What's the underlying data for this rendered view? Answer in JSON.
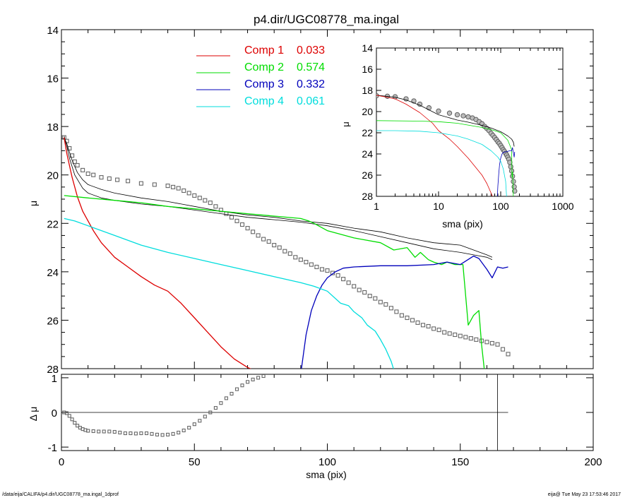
{
  "footer": {
    "path": "/data/eija/CALIFA/p4.dir/UGC08778_ma.ingal_1dprof",
    "stamp": "eija@  Tue May 23 17:53:46 2017"
  },
  "colors": {
    "axes": "#000000",
    "total": "#000000",
    "observed": "#666666",
    "comp1": "#dd0000",
    "comp2": "#00dd00",
    "comp3": "#0000bb",
    "comp4": "#00dddd"
  },
  "chart_data": [
    {
      "type": "line",
      "title": "p4.dir/UGC08778_ma.ingal",
      "xlabel": "",
      "ylabel": "μ",
      "xlim": [
        0,
        200
      ],
      "ylim": [
        28,
        14
      ],
      "y_inverted": true,
      "yticks": [
        "14",
        "16",
        "18",
        "20",
        "22",
        "24",
        "26",
        "28"
      ],
      "legend": {
        "placement": "top-center",
        "entries": [
          {
            "label": "Comp 1",
            "value": "0.033",
            "color": "#dd0000"
          },
          {
            "label": "Comp 2",
            "value": "0.574",
            "color": "#00dd00"
          },
          {
            "label": "Comp 3",
            "value": "0.332",
            "color": "#0000bb"
          },
          {
            "label": "Comp 4",
            "value": "0.061",
            "color": "#00dddd"
          }
        ]
      },
      "observed": {
        "x": [
          1,
          2,
          3,
          4,
          5,
          6,
          8,
          10,
          12,
          15,
          18,
          21,
          25,
          30,
          35,
          40,
          42,
          44,
          46,
          48,
          50,
          52,
          54,
          56,
          58,
          60,
          62,
          64,
          66,
          68,
          70,
          72,
          74,
          76,
          78,
          80,
          82,
          84,
          86,
          88,
          90,
          92,
          94,
          96,
          98,
          100,
          102,
          104,
          106,
          108,
          110,
          112,
          114,
          116,
          118,
          120,
          122,
          124,
          126,
          128,
          130,
          132,
          134,
          136,
          138,
          140,
          142,
          144,
          146,
          148,
          150,
          152,
          154,
          156,
          158,
          160,
          162,
          164,
          166,
          168
        ],
        "y": [
          18.45,
          18.6,
          18.9,
          19.2,
          19.45,
          19.6,
          19.8,
          19.95,
          20.0,
          20.1,
          20.15,
          20.2,
          20.25,
          20.35,
          20.4,
          20.45,
          20.5,
          20.55,
          20.65,
          20.75,
          20.85,
          20.95,
          21.05,
          21.15,
          21.3,
          21.45,
          21.6,
          21.75,
          21.9,
          22.05,
          22.2,
          22.35,
          22.5,
          22.65,
          22.75,
          22.9,
          23.0,
          23.15,
          23.25,
          23.4,
          23.5,
          23.6,
          23.7,
          23.8,
          23.9,
          23.95,
          24.05,
          24.15,
          24.3,
          24.45,
          24.6,
          24.75,
          24.85,
          25.0,
          25.1,
          25.25,
          25.35,
          25.5,
          25.65,
          25.8,
          25.9,
          26.0,
          26.1,
          26.2,
          26.25,
          26.35,
          26.4,
          26.5,
          26.55,
          26.6,
          26.65,
          26.7,
          26.75,
          26.8,
          26.85,
          26.9,
          26.95,
          27.0,
          27.2,
          27.4
        ]
      },
      "series": [
        {
          "key": "total",
          "color": "#000000",
          "width": 0.8,
          "x": [
            1,
            2,
            3,
            4,
            6,
            8,
            10,
            15,
            20,
            30,
            40,
            50,
            60,
            70,
            80,
            90,
            100,
            110,
            120,
            130,
            140,
            150,
            155,
            160,
            162
          ],
          "y": [
            18.45,
            18.7,
            19.05,
            19.4,
            19.9,
            20.2,
            20.4,
            20.6,
            20.75,
            20.95,
            21.1,
            21.3,
            21.5,
            21.65,
            21.75,
            21.9,
            22.0,
            22.2,
            22.35,
            22.6,
            22.8,
            22.9,
            23.1,
            23.3,
            23.4
          ]
        },
        {
          "key": "total_alt",
          "color": "#000000",
          "width": 0.8,
          "x": [
            1,
            2,
            3,
            5,
            8,
            10,
            15,
            20,
            30,
            40,
            50,
            60,
            70,
            80,
            90,
            100,
            110,
            120,
            130,
            140,
            150,
            155,
            160,
            162
          ],
          "y": [
            18.4,
            18.8,
            19.3,
            20.0,
            20.55,
            20.75,
            20.95,
            21.05,
            21.2,
            21.3,
            21.45,
            21.6,
            21.75,
            21.85,
            21.95,
            22.1,
            22.3,
            22.55,
            22.8,
            23.05,
            23.2,
            23.3,
            23.4,
            23.5
          ]
        },
        {
          "key": "comp1",
          "color": "#dd0000",
          "width": 1.3,
          "x": [
            1,
            2,
            4,
            6,
            8,
            10,
            12,
            15,
            20,
            25,
            30,
            35,
            40,
            45,
            50,
            55,
            60,
            65,
            70,
            73
          ],
          "y": [
            18.45,
            19.1,
            20.1,
            20.9,
            21.5,
            21.9,
            22.3,
            22.8,
            23.4,
            23.8,
            24.2,
            24.55,
            24.8,
            25.3,
            25.9,
            26.5,
            27.1,
            27.6,
            27.95,
            28.1
          ]
        },
        {
          "key": "comp2",
          "color": "#00dd00",
          "width": 1.3,
          "x": [
            1,
            10,
            20,
            30,
            40,
            50,
            60,
            70,
            80,
            90,
            93,
            95,
            100,
            110,
            120,
            125,
            130,
            133,
            135,
            138,
            140,
            143,
            145,
            148,
            151,
            153,
            155,
            157,
            158,
            160
          ],
          "y": [
            20.85,
            20.95,
            21.05,
            21.15,
            21.3,
            21.4,
            21.5,
            21.6,
            21.7,
            21.8,
            21.9,
            22.0,
            22.3,
            22.6,
            22.8,
            23.1,
            23.0,
            23.4,
            23.2,
            23.5,
            23.6,
            23.7,
            23.6,
            23.7,
            23.7,
            26.2,
            25.8,
            25.6,
            27.0,
            29.0
          ]
        },
        {
          "key": "comp3",
          "color": "#0000bb",
          "width": 1.3,
          "x": [
            90,
            92,
            94,
            96,
            98,
            100,
            103,
            106,
            110,
            120,
            130,
            140,
            145,
            150,
            155,
            157,
            159,
            160,
            162,
            164,
            166,
            168
          ],
          "y": [
            28.2,
            26.6,
            25.6,
            25.0,
            24.55,
            24.25,
            24.0,
            23.85,
            23.8,
            23.75,
            23.75,
            23.7,
            23.6,
            23.7,
            23.35,
            23.45,
            23.75,
            23.9,
            24.25,
            23.8,
            23.85,
            23.8
          ]
        },
        {
          "key": "comp4",
          "color": "#00dddd",
          "width": 1.3,
          "x": [
            1,
            5,
            10,
            20,
            30,
            40,
            50,
            60,
            70,
            80,
            90,
            95,
            100,
            105,
            108,
            110,
            113,
            115,
            118,
            120,
            122,
            124,
            126
          ],
          "y": [
            21.8,
            21.9,
            22.1,
            22.5,
            22.9,
            23.2,
            23.45,
            23.7,
            23.95,
            24.2,
            24.45,
            24.6,
            24.8,
            25.3,
            25.4,
            25.65,
            25.9,
            26.2,
            26.45,
            26.8,
            27.2,
            27.7,
            28.4
          ]
        }
      ]
    },
    {
      "type": "scatter",
      "title": "",
      "xlabel": "sma (pix)",
      "ylabel": "Δ μ",
      "xlim": [
        0,
        200
      ],
      "ylim": [
        -1.1,
        1.1
      ],
      "yticks": [
        "1",
        "0",
        "-1"
      ],
      "xticks": [
        "0",
        "50",
        "100",
        "150",
        "200"
      ],
      "zero_line": {
        "x": [
          0,
          168
        ],
        "y": 0
      },
      "vertical_line_x": 164,
      "residual": {
        "x": [
          1,
          2,
          3,
          4,
          5,
          6,
          7,
          8,
          9,
          10,
          12,
          14,
          16,
          18,
          20,
          22,
          24,
          26,
          28,
          30,
          32,
          34,
          36,
          38,
          40,
          42,
          44,
          46,
          48,
          50,
          52,
          54,
          56,
          58,
          60,
          62,
          64,
          66,
          68,
          70,
          72,
          74,
          76
        ],
        "y": [
          0.0,
          -0.02,
          -0.1,
          -0.2,
          -0.3,
          -0.38,
          -0.44,
          -0.48,
          -0.51,
          -0.53,
          -0.54,
          -0.55,
          -0.55,
          -0.55,
          -0.56,
          -0.58,
          -0.6,
          -0.6,
          -0.61,
          -0.6,
          -0.6,
          -0.62,
          -0.64,
          -0.65,
          -0.64,
          -0.62,
          -0.58,
          -0.52,
          -0.44,
          -0.34,
          -0.24,
          -0.12,
          0.0,
          0.13,
          0.27,
          0.41,
          0.54,
          0.67,
          0.78,
          0.88,
          0.95,
          1.0,
          1.05
        ]
      }
    },
    {
      "type": "line",
      "title": "",
      "xlabel": "sma (pix)",
      "ylabel": "μ",
      "x_scale": "log",
      "xlim": [
        1,
        1000
      ],
      "ylim": [
        28,
        14
      ],
      "y_inverted": true,
      "yticks": [
        "14",
        "16",
        "18",
        "20",
        "22",
        "24",
        "26",
        "28"
      ],
      "xticks": [
        "1",
        "10",
        "100",
        "1000"
      ],
      "observed": {
        "x": [
          1,
          1.5,
          2,
          3,
          4,
          5,
          7,
          10,
          15,
          20,
          25,
          30,
          35,
          40,
          45,
          50,
          55,
          60,
          65,
          70,
          75,
          80,
          85,
          90,
          95,
          100,
          105,
          110,
          115,
          120,
          125,
          130,
          135,
          140,
          145,
          150,
          155,
          160,
          165,
          168
        ],
        "y": [
          18.5,
          18.55,
          18.6,
          18.8,
          19.0,
          19.3,
          19.65,
          19.95,
          20.15,
          20.3,
          20.4,
          20.5,
          20.6,
          20.75,
          20.95,
          21.15,
          21.4,
          21.6,
          21.8,
          22.05,
          22.25,
          22.45,
          22.65,
          22.85,
          23.0,
          23.2,
          23.4,
          23.6,
          23.75,
          23.95,
          24.1,
          24.3,
          24.5,
          24.8,
          25.2,
          25.6,
          26.1,
          26.6,
          27.1,
          27.5
        ]
      },
      "series": [
        {
          "key": "total",
          "color": "#000000",
          "width": 0.8,
          "x": [
            1,
            2,
            3,
            5,
            10,
            20,
            30,
            50,
            70,
            100,
            130,
            150,
            160,
            165
          ],
          "y": [
            18.45,
            18.65,
            18.9,
            19.4,
            20.3,
            20.8,
            21.0,
            21.3,
            21.55,
            21.9,
            22.3,
            22.6,
            22.9,
            23.3
          ]
        },
        {
          "key": "comp1",
          "color": "#dd0000",
          "width": 0.8,
          "x": [
            1,
            2,
            3,
            5,
            8,
            10,
            15,
            20,
            30,
            40,
            50,
            60,
            70,
            75
          ],
          "y": [
            18.45,
            18.8,
            19.3,
            20.1,
            21.1,
            21.8,
            22.6,
            23.3,
            24.4,
            25.3,
            26.0,
            26.8,
            27.7,
            28.1
          ]
        },
        {
          "key": "comp2",
          "color": "#00dd00",
          "width": 0.8,
          "x": [
            1,
            5,
            10,
            20,
            50,
            80,
            100,
            130,
            150,
            152,
            155,
            157,
            160
          ],
          "y": [
            20.85,
            20.9,
            20.95,
            21.1,
            21.5,
            21.8,
            22.0,
            22.7,
            23.6,
            26.2,
            25.7,
            26.5,
            28.2
          ]
        },
        {
          "key": "comp3",
          "color": "#0000bb",
          "width": 0.8,
          "x": [
            88,
            90,
            93,
            96,
            100,
            105,
            110,
            120,
            130,
            140,
            150,
            155,
            160,
            165,
            168
          ],
          "y": [
            28.2,
            27.0,
            25.9,
            25.0,
            24.4,
            24.0,
            23.85,
            23.8,
            23.75,
            23.7,
            23.7,
            23.4,
            23.9,
            24.3,
            23.8
          ]
        },
        {
          "key": "comp4",
          "color": "#00dddd",
          "width": 0.8,
          "x": [
            1,
            2,
            5,
            10,
            20,
            30,
            50,
            70,
            90,
            100,
            110,
            120,
            125
          ],
          "y": [
            21.8,
            21.8,
            21.85,
            22.0,
            22.3,
            22.6,
            23.1,
            23.7,
            24.3,
            24.7,
            25.4,
            26.6,
            28.2
          ]
        }
      ]
    }
  ]
}
